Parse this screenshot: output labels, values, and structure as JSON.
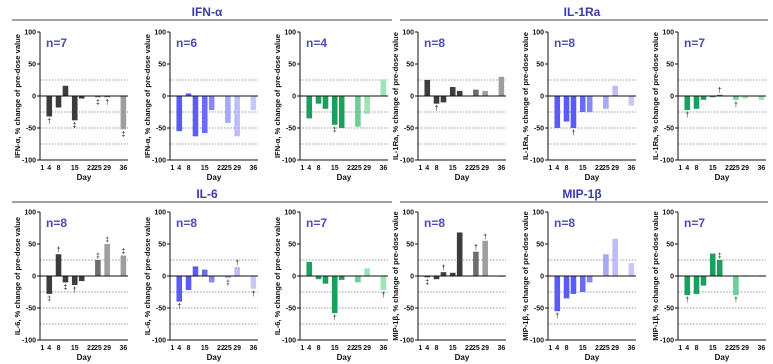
{
  "chart_data": {
    "type": "bar",
    "x_ticks": [
      "1",
      "4",
      "8",
      "15",
      "22",
      "25",
      "29",
      "36"
    ],
    "y_ticks": [
      "100",
      "50",
      "0",
      "-50",
      "-100"
    ],
    "xlabel": "Day",
    "ylim": [
      -100,
      100
    ],
    "reference_lines": [
      25,
      -25,
      -50,
      -75
    ],
    "groups": [
      {
        "title": "IFN-α",
        "ylabel": "IFN-α, % change of pre-dose value",
        "panels": [
          {
            "n_label": "n=7",
            "colors": [
              "#3c3c3c",
              "#3c3c3c",
              "#3c3c3c",
              "#3c3c3c",
              "#3c3c3c",
              "#6e6e6e",
              "#6e6e6e",
              "#9e9e9e"
            ],
            "x": [
              4,
              8,
              11,
              15,
              18,
              25,
              29,
              36
            ],
            "values": [
              -32,
              -18,
              16,
              -38,
              -4,
              -2,
              -2,
              -52
            ],
            "marks": [
              "†",
              "",
              "",
              "‡",
              "",
              "‡",
              "†",
              "‡"
            ]
          },
          {
            "n_label": "n=6",
            "colors": [
              "#5a5af5",
              "#5a5af5",
              "#5a5af5",
              "#6a6af5",
              "#8888f5",
              "#a8a8f5",
              "#bdbdf5",
              "#c8c8f5"
            ],
            "x": [
              4,
              8,
              11,
              15,
              18,
              25,
              29,
              36
            ],
            "values": [
              -55,
              4,
              -63,
              -58,
              -22,
              -42,
              -63,
              -22
            ],
            "marks": [
              "",
              "",
              "",
              "",
              "",
              "",
              "",
              ""
            ]
          },
          {
            "n_label": "n=4",
            "colors": [
              "#1b9e5e",
              "#1b9e5e",
              "#1b9e5e",
              "#1b9e5e",
              "#1b9e5e",
              "#6ccf97",
              "#9ee2b7",
              "#9ee2b7"
            ],
            "x": [
              4,
              8,
              11,
              15,
              18,
              25,
              29,
              36
            ],
            "values": [
              -35,
              -12,
              -20,
              -45,
              -50,
              -48,
              -28,
              26
            ],
            "marks": [
              "",
              "",
              "",
              "‡",
              "",
              "",
              "",
              ""
            ]
          }
        ]
      },
      {
        "title": "IL-1Ra",
        "ylabel": "IL-1Ra, % change of pre-dose value",
        "panels": [
          {
            "n_label": "n=8",
            "colors": [
              "#3c3c3c",
              "#3c3c3c",
              "#3c3c3c",
              "#3c3c3c",
              "#3c3c3c",
              "#6e6e6e",
              "#9e9e9e",
              "#9e9e9e"
            ],
            "x": [
              4,
              8,
              11,
              15,
              18,
              25,
              29,
              36
            ],
            "values": [
              25,
              -12,
              -10,
              14,
              8,
              10,
              8,
              30
            ],
            "marks": [
              "",
              "†",
              "",
              "",
              "",
              "",
              "",
              ""
            ]
          },
          {
            "n_label": "n=8",
            "colors": [
              "#5a5af5",
              "#5a5af5",
              "#5a5af5",
              "#6a6af5",
              "#8888f5",
              "#a8a8f5",
              "#bdbdf5",
              "#c8c8f5"
            ],
            "x": [
              4,
              8,
              11,
              15,
              18,
              25,
              29,
              36
            ],
            "values": [
              -50,
              -40,
              -50,
              -25,
              -25,
              -20,
              16,
              -15
            ],
            "marks": [
              "",
              "",
              "†",
              "",
              "",
              "",
              "",
              ""
            ]
          },
          {
            "n_label": "n=7",
            "colors": [
              "#1b9e5e",
              "#1b9e5e",
              "#1b9e5e",
              "#1b9e5e",
              "#1b9e5e",
              "#6ccf97",
              "#9ee2b7",
              "#9ee2b7"
            ],
            "x": [
              4,
              8,
              11,
              15,
              18,
              25,
              29,
              36
            ],
            "values": [
              -22,
              -20,
              -6,
              -2,
              2,
              -6,
              -4,
              -6
            ],
            "marks": [
              "†",
              "",
              "",
              "",
              "†",
              "†",
              "",
              ""
            ]
          }
        ]
      },
      {
        "title": "IL-6",
        "ylabel": "IL-6, % change of pre-dose value",
        "panels": [
          {
            "n_label": "n=8",
            "colors": [
              "#3c3c3c",
              "#3c3c3c",
              "#3c3c3c",
              "#3c3c3c",
              "#3c3c3c",
              "#6e6e6e",
              "#9e9e9e",
              "#9e9e9e"
            ],
            "x": [
              4,
              8,
              11,
              15,
              18,
              25,
              29,
              36
            ],
            "values": [
              -28,
              34,
              -10,
              -14,
              -8,
              25,
              50,
              32
            ],
            "marks": [
              "‡",
              "†",
              "‡",
              "†",
              "",
              "‡",
              "‡",
              "‡"
            ]
          },
          {
            "n_label": "n=8",
            "colors": [
              "#5a5af5",
              "#5a5af5",
              "#5a5af5",
              "#6a6af5",
              "#8888f5",
              "#a8a8f5",
              "#bdbdf5",
              "#c8c8f5"
            ],
            "x": [
              4,
              8,
              11,
              15,
              18,
              25,
              29,
              36
            ],
            "values": [
              -40,
              -22,
              15,
              10,
              -10,
              -3,
              14,
              -20
            ],
            "marks": [
              "†",
              "",
              "",
              "",
              "",
              "‡",
              "†",
              "†"
            ]
          },
          {
            "n_label": "n=7",
            "colors": [
              "#1b9e5e",
              "#1b9e5e",
              "#1b9e5e",
              "#1b9e5e",
              "#1b9e5e",
              "#6ccf97",
              "#9ee2b7",
              "#9ee2b7"
            ],
            "x": [
              4,
              8,
              11,
              15,
              18,
              25,
              29,
              36
            ],
            "values": [
              22,
              -5,
              -12,
              -58,
              -6,
              -10,
              12,
              -22
            ],
            "marks": [
              "",
              "",
              "",
              "†",
              "",
              "",
              "",
              "†"
            ]
          }
        ]
      },
      {
        "title": "MIP-1β",
        "ylabel": "MIP-1β, % change of pre-dose value",
        "panels": [
          {
            "n_label": "n=8",
            "colors": [
              "#3c3c3c",
              "#3c3c3c",
              "#3c3c3c",
              "#3c3c3c",
              "#3c3c3c",
              "#6e6e6e",
              "#9e9e9e",
              "#9e9e9e"
            ],
            "x": [
              4,
              8,
              11,
              15,
              18,
              25,
              29,
              36
            ],
            "values": [
              -2,
              -5,
              6,
              5,
              68,
              38,
              55,
              0
            ],
            "marks": [
              "‡",
              "",
              "†",
              "",
              "",
              "†",
              "†",
              ""
            ]
          },
          {
            "n_label": "n=8",
            "colors": [
              "#5a5af5",
              "#5a5af5",
              "#5a5af5",
              "#6a6af5",
              "#8888f5",
              "#a8a8f5",
              "#bdbdf5",
              "#c8c8f5"
            ],
            "x": [
              4,
              8,
              11,
              15,
              18,
              25,
              29,
              36
            ],
            "values": [
              -55,
              -35,
              -28,
              -25,
              -10,
              34,
              58,
              20
            ],
            "marks": [
              "†",
              "",
              "",
              "",
              "",
              "",
              "",
              ""
            ]
          },
          {
            "n_label": "n=7",
            "colors": [
              "#1b9e5e",
              "#1b9e5e",
              "#1b9e5e",
              "#1b9e5e",
              "#1b9e5e",
              "#6ccf97",
              "#9ee2b7",
              "#9ee2b7"
            ],
            "x": [
              4,
              8,
              11,
              15,
              18,
              25,
              29,
              36
            ],
            "values": [
              -30,
              -28,
              -15,
              35,
              25,
              -30,
              0,
              0
            ],
            "marks": [
              "†",
              "",
              "",
              "",
              "‡",
              "†",
              "",
              ""
            ]
          }
        ]
      }
    ]
  }
}
